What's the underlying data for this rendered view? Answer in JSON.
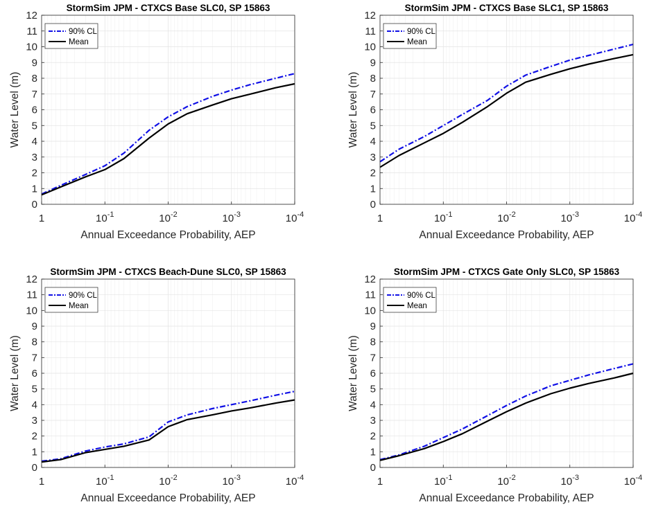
{
  "figure": {
    "colors": {
      "cl90": "#1010e6",
      "mean": "#000000",
      "grid": "#e3e3e3",
      "axes": "#262626"
    }
  },
  "chart_data": [
    {
      "type": "line",
      "title": "StormSim JPM - CTXCS Base SLC0, SP 15863",
      "xlabel": "Annual Exceedance Probability, AEP",
      "ylabel": "Water Level (m)",
      "xscale": "log",
      "xreversed": true,
      "xlim": [
        1,
        0.0001
      ],
      "ylim": [
        0,
        12
      ],
      "xticks": [
        1,
        0.1,
        0.01,
        0.001,
        0.0001
      ],
      "yticks": [
        0,
        1,
        2,
        3,
        4,
        5,
        6,
        7,
        8,
        9,
        10,
        11,
        12
      ],
      "grid": true,
      "legend_position": "top-left",
      "series": [
        {
          "name": "90% CL",
          "style": "dash-dot",
          "color": "#1010e6",
          "x": [
            1,
            0.5,
            0.2,
            0.1,
            0.05,
            0.02,
            0.01,
            0.005,
            0.002,
            0.001,
            0.0005,
            0.0002,
            0.0001
          ],
          "y": [
            0.65,
            1.2,
            1.9,
            2.45,
            3.25,
            4.7,
            5.55,
            6.2,
            6.85,
            7.25,
            7.6,
            8.0,
            8.3
          ]
        },
        {
          "name": "Mean",
          "style": "solid",
          "color": "#000000",
          "x": [
            1,
            0.5,
            0.2,
            0.1,
            0.05,
            0.02,
            0.01,
            0.005,
            0.002,
            0.001,
            0.0005,
            0.0002,
            0.0001
          ],
          "y": [
            0.6,
            1.1,
            1.75,
            2.2,
            2.9,
            4.2,
            5.1,
            5.75,
            6.3,
            6.7,
            7.0,
            7.4,
            7.65
          ]
        }
      ]
    },
    {
      "type": "line",
      "title": "StormSim JPM - CTXCS Base SLC1, SP 15863",
      "xlabel": "Annual Exceedance Probability, AEP",
      "ylabel": "Water Level (m)",
      "xscale": "log",
      "xreversed": true,
      "xlim": [
        1,
        0.0001
      ],
      "ylim": [
        0,
        12
      ],
      "xticks": [
        1,
        0.1,
        0.01,
        0.001,
        0.0001
      ],
      "yticks": [
        0,
        1,
        2,
        3,
        4,
        5,
        6,
        7,
        8,
        9,
        10,
        11,
        12
      ],
      "grid": true,
      "legend_position": "top-left",
      "series": [
        {
          "name": "90% CL",
          "style": "dash-dot",
          "color": "#1010e6",
          "x": [
            1,
            0.5,
            0.2,
            0.1,
            0.05,
            0.02,
            0.01,
            0.005,
            0.002,
            0.001,
            0.0005,
            0.0002,
            0.0001
          ],
          "y": [
            2.7,
            3.5,
            4.3,
            5.0,
            5.7,
            6.6,
            7.5,
            8.2,
            8.75,
            9.15,
            9.45,
            9.85,
            10.15
          ]
        },
        {
          "name": "Mean",
          "style": "solid",
          "color": "#000000",
          "x": [
            1,
            0.5,
            0.2,
            0.1,
            0.05,
            0.02,
            0.01,
            0.005,
            0.002,
            0.001,
            0.0005,
            0.0002,
            0.0001
          ],
          "y": [
            2.35,
            3.1,
            3.9,
            4.5,
            5.2,
            6.2,
            7.05,
            7.75,
            8.25,
            8.6,
            8.9,
            9.25,
            9.5
          ]
        }
      ]
    },
    {
      "type": "line",
      "title": "StormSim JPM - CTXCS Beach-Dune SLC0, SP 15863",
      "xlabel": "Annual Exceedance Probability, AEP",
      "ylabel": "Water Level (m)",
      "xscale": "log",
      "xreversed": true,
      "xlim": [
        1,
        0.0001
      ],
      "ylim": [
        0,
        12
      ],
      "xticks": [
        1,
        0.1,
        0.01,
        0.001,
        0.0001
      ],
      "yticks": [
        0,
        1,
        2,
        3,
        4,
        5,
        6,
        7,
        8,
        9,
        10,
        11,
        12
      ],
      "grid": true,
      "legend_position": "top-left",
      "series": [
        {
          "name": "90% CL",
          "style": "dash-dot",
          "color": "#1010e6",
          "x": [
            1,
            0.5,
            0.2,
            0.1,
            0.05,
            0.02,
            0.01,
            0.005,
            0.002,
            0.001,
            0.0005,
            0.0002,
            0.0001
          ],
          "y": [
            0.4,
            0.55,
            1.05,
            1.3,
            1.5,
            1.95,
            2.9,
            3.35,
            3.75,
            4.0,
            4.25,
            4.6,
            4.85
          ]
        },
        {
          "name": "Mean",
          "style": "solid",
          "color": "#000000",
          "x": [
            1,
            0.5,
            0.2,
            0.1,
            0.05,
            0.02,
            0.01,
            0.005,
            0.002,
            0.001,
            0.0005,
            0.0002,
            0.0001
          ],
          "y": [
            0.35,
            0.5,
            0.95,
            1.15,
            1.35,
            1.75,
            2.6,
            3.05,
            3.35,
            3.6,
            3.8,
            4.1,
            4.3
          ]
        }
      ]
    },
    {
      "type": "line",
      "title": "StormSim JPM - CTXCS Gate Only SLC0, SP 15863",
      "xlabel": "Annual Exceedance Probability, AEP",
      "ylabel": "Water Level (m)",
      "xscale": "log",
      "xreversed": true,
      "xlim": [
        1,
        0.0001
      ],
      "ylim": [
        0,
        12
      ],
      "xticks": [
        1,
        0.1,
        0.01,
        0.001,
        0.0001
      ],
      "yticks": [
        0,
        1,
        2,
        3,
        4,
        5,
        6,
        7,
        8,
        9,
        10,
        11,
        12
      ],
      "grid": true,
      "legend_position": "top-left",
      "series": [
        {
          "name": "90% CL",
          "style": "dash-dot",
          "color": "#1010e6",
          "x": [
            1,
            0.5,
            0.2,
            0.1,
            0.05,
            0.02,
            0.01,
            0.005,
            0.002,
            0.001,
            0.0005,
            0.0002,
            0.0001
          ],
          "y": [
            0.5,
            0.8,
            1.35,
            1.9,
            2.45,
            3.3,
            3.95,
            4.55,
            5.2,
            5.55,
            5.9,
            6.3,
            6.6
          ]
        },
        {
          "name": "Mean",
          "style": "solid",
          "color": "#000000",
          "x": [
            1,
            0.5,
            0.2,
            0.1,
            0.05,
            0.02,
            0.01,
            0.005,
            0.002,
            0.001,
            0.0005,
            0.0002,
            0.0001
          ],
          "y": [
            0.45,
            0.75,
            1.2,
            1.65,
            2.15,
            2.95,
            3.55,
            4.1,
            4.7,
            5.05,
            5.35,
            5.7,
            6.0
          ]
        }
      ]
    }
  ]
}
